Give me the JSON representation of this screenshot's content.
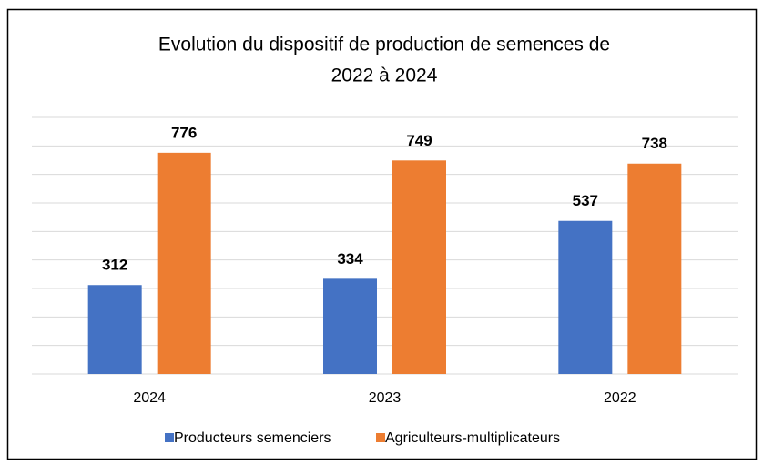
{
  "chart_data": {
    "type": "bar",
    "title": [
      "Evolution du dispositif de production de semences de",
      "2022 à 2024"
    ],
    "categories": [
      "2024",
      "2023",
      "2022"
    ],
    "series": [
      {
        "name": "Producteurs semenciers",
        "color": "#4472c4",
        "values": [
          312,
          334,
          537
        ]
      },
      {
        "name": "Agriculteurs-multiplicateurs",
        "color": "#ed7d31",
        "values": [
          776,
          749,
          738
        ]
      }
    ],
    "ylim": [
      0,
      900
    ],
    "yticks": [
      0,
      100,
      200,
      300,
      400,
      500,
      600,
      700,
      800,
      900
    ],
    "grid": true,
    "legend": "bottom"
  }
}
